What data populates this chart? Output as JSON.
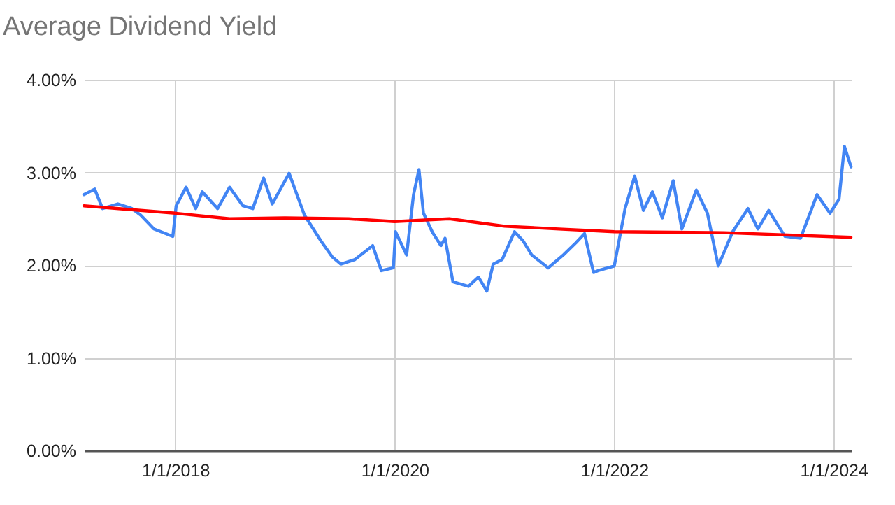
{
  "chart_data": {
    "type": "line",
    "title": "Average Dividend Yield",
    "xlim": [
      "2017-03-03",
      "2024-03-01"
    ],
    "xticks": [
      {
        "value": "2018-01-01",
        "label": "1/1/2018"
      },
      {
        "value": "2020-01-01",
        "label": "1/1/2020"
      },
      {
        "value": "2022-01-01",
        "label": "1/1/2022"
      },
      {
        "value": "2024-01-01",
        "label": "1/1/2024"
      }
    ],
    "ylim": [
      0,
      4
    ],
    "yticks": [
      {
        "value": 0,
        "label": "0.00%"
      },
      {
        "value": 1,
        "label": "1.00%"
      },
      {
        "value": 2,
        "label": "2.00%"
      },
      {
        "value": 3,
        "label": "3.00%"
      },
      {
        "value": 4,
        "label": "4.00%"
      }
    ],
    "grid": true,
    "series": [
      {
        "color": "#4285f4",
        "x": [
          "2017-03-03",
          "2017-04-08",
          "2017-05-04",
          "2017-06-24",
          "2017-08-10",
          "2017-09-08",
          "2017-10-22",
          "2017-12-24",
          "2018-01-04",
          "2018-02-06",
          "2018-03-10",
          "2018-04-01",
          "2018-05-22",
          "2018-07-01",
          "2018-08-14",
          "2018-09-16",
          "2018-10-22",
          "2018-11-20",
          "2019-01-15",
          "2019-03-07",
          "2019-05-01",
          "2019-06-07",
          "2019-07-06",
          "2019-08-22",
          "2019-10-20",
          "2019-11-18",
          "2019-12-28",
          "2020-01-04",
          "2020-02-10",
          "2020-03-04",
          "2020-03-22",
          "2020-04-06",
          "2020-05-05",
          "2020-06-03",
          "2020-06-17",
          "2020-07-13",
          "2020-09-03",
          "2020-10-06",
          "2020-11-03",
          "2020-11-24",
          "2020-12-24",
          "2021-02-03",
          "2021-03-04",
          "2021-04-01",
          "2021-05-26",
          "2021-07-16",
          "2021-08-26",
          "2021-09-24",
          "2021-10-24",
          "2021-11-08",
          "2022-01-01",
          "2022-02-06",
          "2022-03-10",
          "2022-04-08",
          "2022-05-08",
          "2022-06-10",
          "2022-07-16",
          "2022-08-14",
          "2022-10-01",
          "2022-11-07",
          "2022-12-13",
          "2023-01-30",
          "2023-03-22",
          "2023-04-24",
          "2023-05-30",
          "2023-07-23",
          "2023-09-13",
          "2023-11-07",
          "2023-12-20",
          "2024-01-19",
          "2024-02-06",
          "2024-02-28"
        ],
        "values": [
          2.76,
          2.82,
          2.61,
          2.66,
          2.61,
          2.54,
          2.39,
          2.31,
          2.64,
          2.84,
          2.61,
          2.79,
          2.61,
          2.84,
          2.64,
          2.61,
          2.94,
          2.66,
          2.99,
          2.54,
          2.26,
          2.09,
          2.01,
          2.06,
          2.21,
          1.94,
          1.97,
          2.36,
          2.11,
          2.76,
          3.03,
          2.56,
          2.36,
          2.21,
          2.29,
          1.82,
          1.77,
          1.87,
          1.72,
          2.01,
          2.06,
          2.36,
          2.26,
          2.11,
          1.97,
          2.11,
          2.24,
          2.34,
          1.92,
          1.94,
          1.99,
          2.61,
          2.96,
          2.59,
          2.79,
          2.51,
          2.91,
          2.39,
          2.81,
          2.56,
          1.99,
          2.36,
          2.61,
          2.39,
          2.59,
          2.31,
          2.29,
          2.76,
          2.56,
          2.71,
          3.28,
          3.06
        ]
      },
      {
        "color": "#ff0000",
        "x": [
          "2017-03-03",
          "2018-01-01",
          "2018-07-01",
          "2019-01-01",
          "2019-08-01",
          "2020-01-01",
          "2020-07-01",
          "2021-01-01",
          "2021-07-01",
          "2022-01-01",
          "2023-01-01",
          "2024-02-28"
        ],
        "values": [
          2.64,
          2.56,
          2.5,
          2.51,
          2.5,
          2.47,
          2.5,
          2.42,
          2.39,
          2.36,
          2.35,
          2.3
        ]
      }
    ]
  }
}
